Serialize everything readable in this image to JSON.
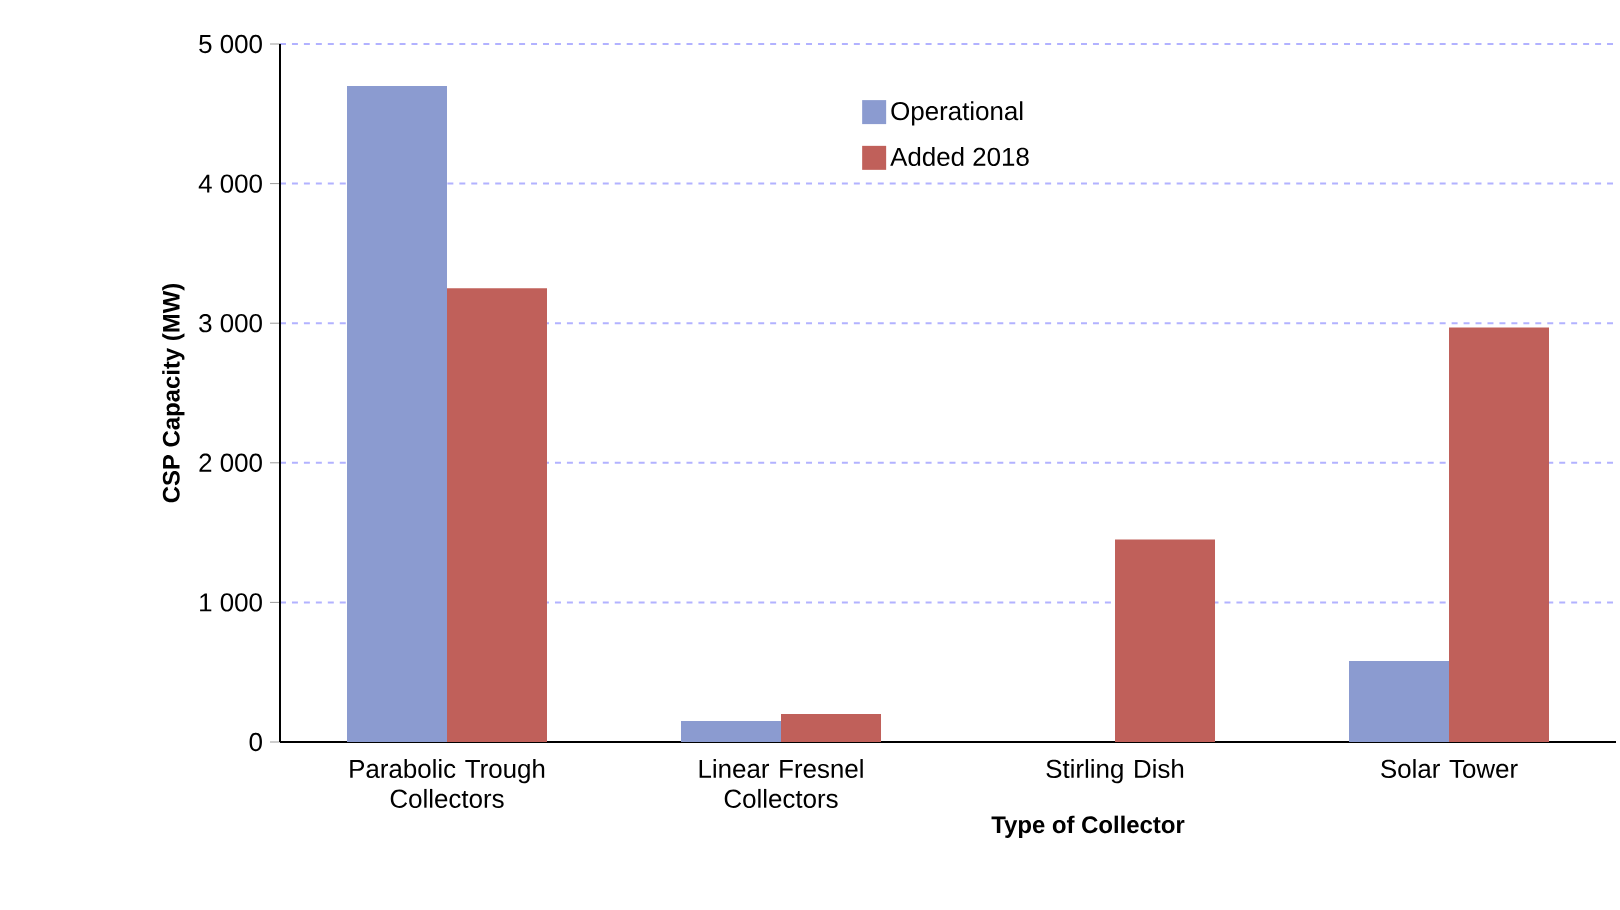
{
  "chart_data": {
    "type": "bar",
    "xlabel": "Type of Collector",
    "ylabel": "CSP Capacity (MW)",
    "categories": [
      "Parabolic Trough Collectors",
      "Linear Fresnel Collectors",
      "Stirling Dish",
      "Solar Tower"
    ],
    "series": [
      {
        "name": "Operational",
        "color": "#8b9bd0",
        "values": [
          4700,
          150,
          0,
          580
        ]
      },
      {
        "name": "Added 2018",
        "color": "#c0605a",
        "values": [
          3250,
          200,
          1450,
          2970
        ]
      }
    ],
    "ylim": [
      0,
      5000
    ],
    "yticks": [
      0,
      {
        "value": 1000,
        "label": "1 000"
      },
      {
        "value": 2000,
        "label": "2 000"
      },
      {
        "value": 3000,
        "label": "3 000"
      },
      {
        "value": 4000,
        "label": "4 000"
      },
      {
        "value": 5000,
        "label": "5 000"
      }
    ],
    "grid": "y",
    "legend": "top"
  }
}
